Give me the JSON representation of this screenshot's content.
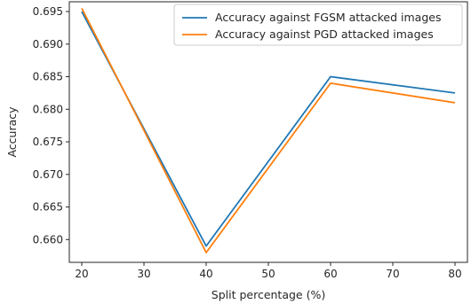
{
  "chart_data": {
    "type": "line",
    "title": "",
    "xlabel": "Split percentage (%)",
    "ylabel": "Accuracy",
    "x": [
      20,
      40,
      60,
      80
    ],
    "xlim": [
      18,
      82
    ],
    "ylim": [
      0.6565,
      0.6965
    ],
    "xticks": [
      20,
      30,
      40,
      50,
      60,
      70,
      80
    ],
    "yticks": [
      "0.660",
      "0.665",
      "0.670",
      "0.675",
      "0.680",
      "0.685",
      "0.690",
      "0.695"
    ],
    "grid": false,
    "legend_position": "top-right",
    "series": [
      {
        "name": "Accuracy against FGSM attacked images",
        "color": "#1f77b4",
        "values": [
          0.695,
          0.659,
          0.685,
          0.6825
        ]
      },
      {
        "name": "Accuracy against PGD attacked images",
        "color": "#ff7f0e",
        "values": [
          0.6955,
          0.658,
          0.684,
          0.681
        ]
      }
    ]
  }
}
